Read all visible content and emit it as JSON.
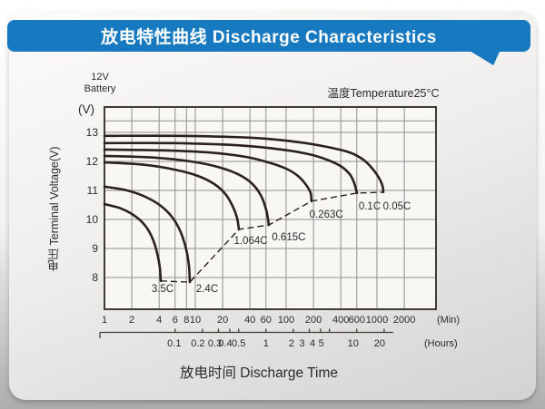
{
  "banner": {
    "title": "放电特性曲线 Discharge Characteristics",
    "color": "#1779bf"
  },
  "header": {
    "battery_line1": "12V",
    "battery_line2": "Battery",
    "temperature": "温度Temperature25°C"
  },
  "axes": {
    "y_unit": "(V)",
    "y_title": "电压 Terminal Voltage(V)",
    "x_title": "放电时间 Discharge Time",
    "min_unit_label": "(Min)",
    "hours_unit_label": "(Hours)"
  },
  "chart_data": {
    "type": "line",
    "title": "放电特性曲线 Discharge Characteristics",
    "xlabel": "放电时间 Discharge Time",
    "ylabel": "电压 Terminal Voltage(V)",
    "x_scale": "log",
    "x_unit": "minutes",
    "ylim": [
      7,
      14
    ],
    "grid": true,
    "x_ticks_min": [
      1,
      2,
      4,
      6,
      8,
      10,
      20,
      40,
      60,
      100,
      200,
      400,
      600,
      1000,
      2000
    ],
    "x_ticks_hours": [
      0.1,
      0.2,
      0.3,
      0.4,
      0.5,
      1,
      2,
      3,
      4,
      5,
      10,
      20
    ],
    "x_ticks_hours_dx": [
      -1,
      -5,
      -4,
      -5,
      0,
      0,
      -2,
      -8,
      -9,
      -9,
      -4,
      -5
    ],
    "y_ticks_v": [
      13,
      12,
      11,
      10,
      9,
      8
    ],
    "y_gridlines_v": [
      13.4,
      13,
      12,
      11,
      10,
      9,
      8
    ],
    "colors": {
      "plot_bg": "#f8f7f4",
      "grid": "#8f8f8f",
      "frame": "#413b37",
      "curve": "#2b211c",
      "text": "#2b2b2b"
    },
    "series": [
      {
        "name": "0.05C",
        "label_at": [
          1660,
          10.47
        ],
        "points": [
          [
            1,
            12.88
          ],
          [
            7.08,
            12.88
          ],
          [
            44.7,
            12.81
          ],
          [
            141,
            12.66
          ],
          [
            282,
            12.5
          ],
          [
            501,
            12.31
          ],
          [
            708,
            12.06
          ],
          [
            891,
            11.75
          ],
          [
            1050,
            11.44
          ],
          [
            1150,
            11.16
          ],
          [
            1175,
            10.94
          ]
        ]
      },
      {
        "name": "0.1C",
        "label_at": [
          832,
          10.47
        ],
        "points": [
          [
            1,
            12.63
          ],
          [
            5.62,
            12.63
          ],
          [
            28.2,
            12.56
          ],
          [
            89.1,
            12.41
          ],
          [
            178,
            12.25
          ],
          [
            282,
            12.06
          ],
          [
            398,
            11.84
          ],
          [
            501,
            11.56
          ],
          [
            562,
            11.25
          ],
          [
            603,
            10.91
          ]
        ]
      },
      {
        "name": "0.263C",
        "label_at": [
          277,
          10.19
        ],
        "points": [
          [
            1,
            12.41
          ],
          [
            4.47,
            12.38
          ],
          [
            14.1,
            12.31
          ],
          [
            35.5,
            12.16
          ],
          [
            63.1,
            11.97
          ],
          [
            100,
            11.75
          ],
          [
            135,
            11.5
          ],
          [
            166,
            11.19
          ],
          [
            186,
            10.91
          ],
          [
            190,
            10.63
          ]
        ]
      },
      {
        "name": "0.615C",
        "label_at": [
          107,
          9.41
        ],
        "points": [
          [
            1,
            12.19
          ],
          [
            3.55,
            12.13
          ],
          [
            8.91,
            12.0
          ],
          [
            17.8,
            11.81
          ],
          [
            29.5,
            11.56
          ],
          [
            41.7,
            11.25
          ],
          [
            52.5,
            10.84
          ],
          [
            60.3,
            10.34
          ],
          [
            64.6,
            9.81
          ]
        ]
      },
      {
        "name": "1.064C",
        "label_at": [
          40.7,
          9.28
        ],
        "points": [
          [
            1,
            11.97
          ],
          [
            2.82,
            11.88
          ],
          [
            5.89,
            11.72
          ],
          [
            10.7,
            11.5
          ],
          [
            16.2,
            11.22
          ],
          [
            21.4,
            10.88
          ],
          [
            25.7,
            10.47
          ],
          [
            28.8,
            10.06
          ],
          [
            30.2,
            9.66
          ]
        ]
      },
      {
        "name": "2.4C",
        "label_at": [
          13.5,
          7.63
        ],
        "points": [
          [
            1,
            11.13
          ],
          [
            1.78,
            11.0
          ],
          [
            2.82,
            10.78
          ],
          [
            4.17,
            10.47
          ],
          [
            5.62,
            10.06
          ],
          [
            6.92,
            9.56
          ],
          [
            7.94,
            8.97
          ],
          [
            8.51,
            8.41
          ],
          [
            8.71,
            7.84
          ]
        ]
      },
      {
        "name": "3.5C",
        "label_at": [
          4.37,
          7.63
        ],
        "points": [
          [
            1,
            10.53
          ],
          [
            1.51,
            10.38
          ],
          [
            2.14,
            10.13
          ],
          [
            2.82,
            9.78
          ],
          [
            3.39,
            9.34
          ],
          [
            3.8,
            8.84
          ],
          [
            4.07,
            8.34
          ],
          [
            4.17,
            7.88
          ]
        ]
      }
    ],
    "cutoff_locus_dashed": {
      "description": "final discharge voltage locus connecting curve end points",
      "points": [
        [
          4.17,
          7.88
        ],
        [
          8.71,
          7.84
        ],
        [
          30.2,
          9.66
        ],
        [
          64.6,
          9.81
        ],
        [
          190,
          10.63
        ],
        [
          603,
          10.91
        ],
        [
          1175,
          10.94
        ]
      ]
    }
  }
}
